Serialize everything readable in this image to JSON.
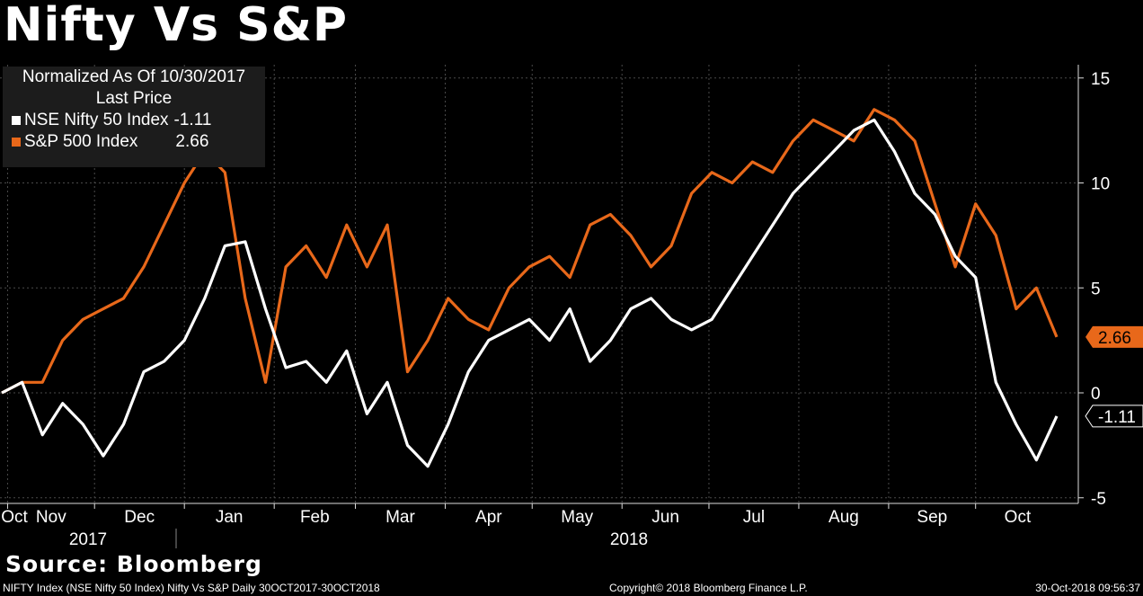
{
  "title": "Nifty Vs S&P",
  "legend": {
    "header_line1": "Normalized As Of 10/30/2017",
    "header_line2": "Last Price",
    "items": [
      {
        "name": "NSE Nifty 50 Index",
        "value": "-1.11",
        "color": "#ffffff"
      },
      {
        "name": "S&P 500 Index",
        "value": "2.66",
        "color": "#e8681a"
      }
    ]
  },
  "source": "Source: Bloomberg",
  "footer": {
    "left": "NIFTY Index (NSE Nifty 50 Index) Nifty Vs S&P  Daily 30OCT2017-30OCT2018",
    "center": "Copyright© 2018 Bloomberg Finance L.P.",
    "right": "30-Oct-2018 09:56:37"
  },
  "chart_data": {
    "type": "line",
    "y_ticks": [
      "15",
      "10",
      "5",
      "0",
      "-5"
    ],
    "ylim": [
      -5,
      15
    ],
    "grid": true,
    "legend_position": "top-left",
    "month_labels": [
      "Oct",
      "Nov",
      "Dec",
      "Jan",
      "Feb",
      "Mar",
      "Apr",
      "May",
      "Jun",
      "Jul",
      "Aug",
      "Sep",
      "Oct"
    ],
    "year_labels": [
      "2017",
      "2018"
    ],
    "x": [
      "2017-10-30",
      "2017-11-06",
      "2017-11-13",
      "2017-11-20",
      "2017-11-27",
      "2017-12-04",
      "2017-12-11",
      "2017-12-18",
      "2017-12-25",
      "2018-01-01",
      "2018-01-08",
      "2018-01-15",
      "2018-01-22",
      "2018-01-29",
      "2018-02-05",
      "2018-02-12",
      "2018-02-19",
      "2018-02-26",
      "2018-03-05",
      "2018-03-12",
      "2018-03-19",
      "2018-03-26",
      "2018-04-02",
      "2018-04-09",
      "2018-04-16",
      "2018-04-23",
      "2018-04-30",
      "2018-05-07",
      "2018-05-14",
      "2018-05-21",
      "2018-05-28",
      "2018-06-04",
      "2018-06-11",
      "2018-06-18",
      "2018-06-25",
      "2018-07-02",
      "2018-07-09",
      "2018-07-16",
      "2018-07-23",
      "2018-07-30",
      "2018-08-06",
      "2018-08-13",
      "2018-08-20",
      "2018-08-27",
      "2018-09-03",
      "2018-09-10",
      "2018-09-17",
      "2018-09-24",
      "2018-10-01",
      "2018-10-08",
      "2018-10-15",
      "2018-10-22",
      "2018-10-29"
    ],
    "series": [
      {
        "name": "NSE Nifty 50 Index",
        "color": "#ffffff",
        "values": [
          0.0,
          0.5,
          -2.0,
          -0.5,
          -1.5,
          -3.0,
          -1.5,
          1.0,
          1.5,
          2.5,
          4.5,
          7.0,
          7.2,
          4.0,
          1.2,
          1.5,
          0.5,
          2.0,
          -1.0,
          0.5,
          -2.5,
          -3.5,
          -1.5,
          1.0,
          2.5,
          3.0,
          3.5,
          2.5,
          4.0,
          1.5,
          2.5,
          4.0,
          4.5,
          3.5,
          3.0,
          3.5,
          5.0,
          6.5,
          8.0,
          9.5,
          10.5,
          11.5,
          12.5,
          13.0,
          11.5,
          9.5,
          8.5,
          6.5,
          5.5,
          0.5,
          -1.5,
          -3.2,
          -1.11
        ]
      },
      {
        "name": "S&P 500 Index",
        "color": "#e8681a",
        "values": [
          0.0,
          0.5,
          0.5,
          2.5,
          3.5,
          4.0,
          4.5,
          6.0,
          8.0,
          10.0,
          11.5,
          10.5,
          4.5,
          0.5,
          6.0,
          7.0,
          5.5,
          8.0,
          6.0,
          8.0,
          1.0,
          2.5,
          4.5,
          3.5,
          3.0,
          5.0,
          6.0,
          6.5,
          5.5,
          8.0,
          8.5,
          7.5,
          6.0,
          7.0,
          9.5,
          10.5,
          10.0,
          11.0,
          10.5,
          12.0,
          13.0,
          12.5,
          12.0,
          13.5,
          13.0,
          12.0,
          9.0,
          6.0,
          9.0,
          7.5,
          4.0,
          5.0,
          2.66
        ]
      }
    ]
  }
}
